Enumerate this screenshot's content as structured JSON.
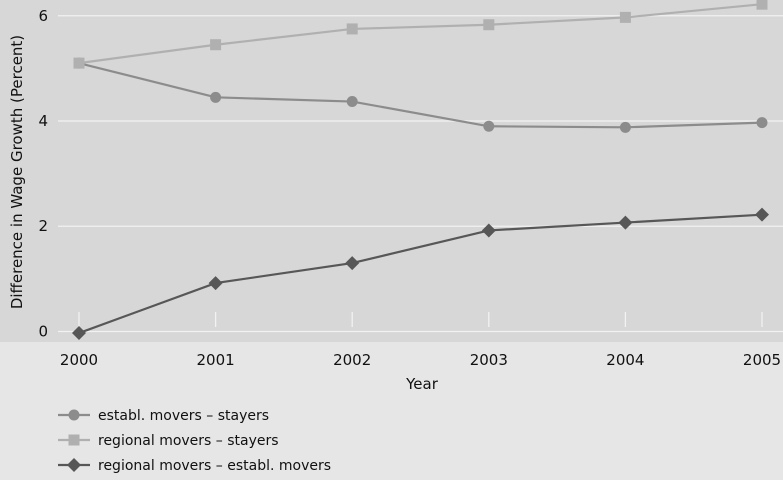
{
  "chart_data": {
    "type": "line",
    "title": "",
    "xlabel": "Year",
    "ylabel": "Difference in Wage Growth (Percent)",
    "x": [
      2000,
      2001,
      2002,
      2003,
      2004,
      2005
    ],
    "x_tick_labels": [
      "2000",
      "2001",
      "2002",
      "2003",
      "2004",
      "2005"
    ],
    "y_ticks": [
      0,
      2,
      4,
      6
    ],
    "y_tick_labels": [
      "0",
      "2",
      "4",
      "6"
    ],
    "xlim": [
      2000,
      2005
    ],
    "ylim": [
      -0.2,
      6.3
    ],
    "grid": "horizontal",
    "legend_position": "bottom-left",
    "colors": {
      "page_background": "#e6e6e6",
      "plot_background": "#d7d7d7",
      "gridline": "#f2f2f2"
    },
    "series": [
      {
        "name": "establ. movers – stayers",
        "marker": "circle",
        "color": "#8c8c8c",
        "values": [
          5.1,
          4.45,
          4.37,
          3.9,
          3.88,
          3.97
        ]
      },
      {
        "name": "regional movers – stayers",
        "marker": "square",
        "color": "#b0b0b0",
        "values": [
          5.1,
          5.45,
          5.75,
          5.83,
          5.97,
          6.22
        ]
      },
      {
        "name": "regional movers – establ. movers",
        "marker": "diamond",
        "color": "#575757",
        "values": [
          -0.03,
          0.92,
          1.3,
          1.92,
          2.07,
          2.22
        ]
      }
    ]
  }
}
